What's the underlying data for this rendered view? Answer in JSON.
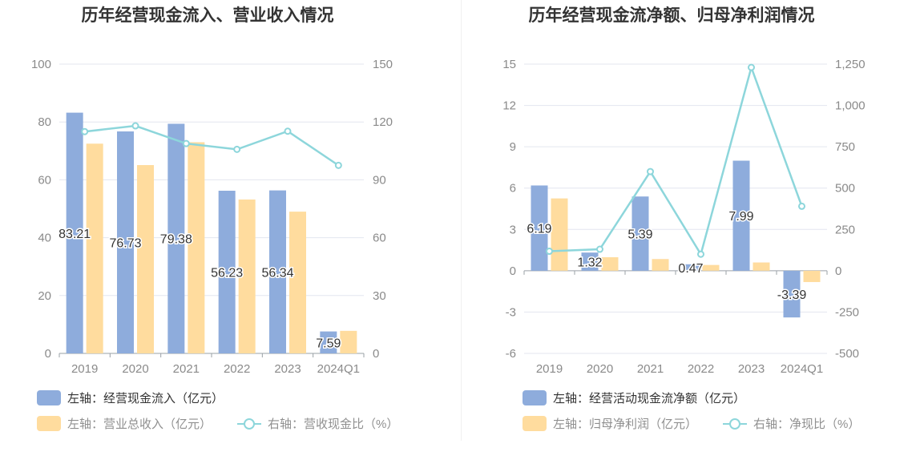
{
  "chart_data": [
    {
      "type": "bar",
      "title": "历年经营现金流入、营业收入情况",
      "categories": [
        "2019",
        "2020",
        "2021",
        "2022",
        "2023",
        "2024Q1"
      ],
      "left_axis": {
        "ylim": [
          0,
          100
        ],
        "ticks": [
          0,
          20,
          40,
          60,
          80,
          100
        ]
      },
      "right_axis": {
        "ylim": [
          0,
          150
        ],
        "ticks": [
          0,
          30,
          60,
          90,
          120,
          150
        ]
      },
      "grid": true,
      "legend_placement": "bottom-left",
      "series": [
        {
          "name": "左轴：经营现金流入（亿元）",
          "kind": "bar",
          "axis": "left",
          "color": "#8eacdc",
          "values": [
            83.21,
            76.73,
            79.38,
            56.23,
            56.34,
            7.59
          ],
          "labels": [
            "83.21",
            "76.73",
            "79.38",
            "56.23",
            "56.34",
            "7.59"
          ]
        },
        {
          "name": "左轴：营业总收入（亿元）",
          "kind": "bar",
          "axis": "left",
          "color": "#ffdc9e",
          "values": [
            72.5,
            65.1,
            73.0,
            53.2,
            49.0,
            7.8
          ]
        },
        {
          "name": "右轴：营收现金比（%）",
          "kind": "line",
          "axis": "right",
          "color": "#8dd6db",
          "values": [
            115.0,
            118.0,
            108.8,
            105.8,
            115.2,
            97.5
          ]
        }
      ]
    },
    {
      "type": "bar",
      "title": "历年经营现金流净额、归母净利润情况",
      "categories": [
        "2019",
        "2020",
        "2021",
        "2022",
        "2023",
        "2024Q1"
      ],
      "left_axis": {
        "ylim": [
          -6,
          15
        ],
        "ticks": [
          -6,
          -3,
          0,
          3,
          6,
          9,
          12,
          15
        ]
      },
      "right_axis": {
        "ylim": [
          -500,
          1250
        ],
        "ticks": [
          -500,
          -250,
          0,
          250,
          500,
          750,
          1000,
          1250
        ],
        "tick_labels": [
          "-500",
          "-250",
          "0",
          "250",
          "500",
          "750",
          "1,000",
          "1,250"
        ]
      },
      "grid": true,
      "legend_placement": "bottom-left",
      "series": [
        {
          "name": "左轴：经营活动现金流净额（亿元）",
          "kind": "bar",
          "axis": "left",
          "color": "#8eacdc",
          "values": [
            6.19,
            1.32,
            5.39,
            0.47,
            7.99,
            -3.39
          ],
          "labels": [
            "6.19",
            "1.32",
            "5.39",
            "0.47",
            "7.99",
            "-3.39"
          ]
        },
        {
          "name": "左轴：归母净利润（亿元）",
          "kind": "bar",
          "axis": "left",
          "color": "#ffdc9e",
          "values": [
            5.25,
            0.98,
            0.85,
            0.42,
            0.6,
            -0.82
          ]
        },
        {
          "name": "右轴：净现比（%）",
          "kind": "line",
          "axis": "right",
          "color": "#8dd6db",
          "values": [
            118,
            130,
            600,
            100,
            1230,
            390
          ]
        }
      ]
    }
  ]
}
